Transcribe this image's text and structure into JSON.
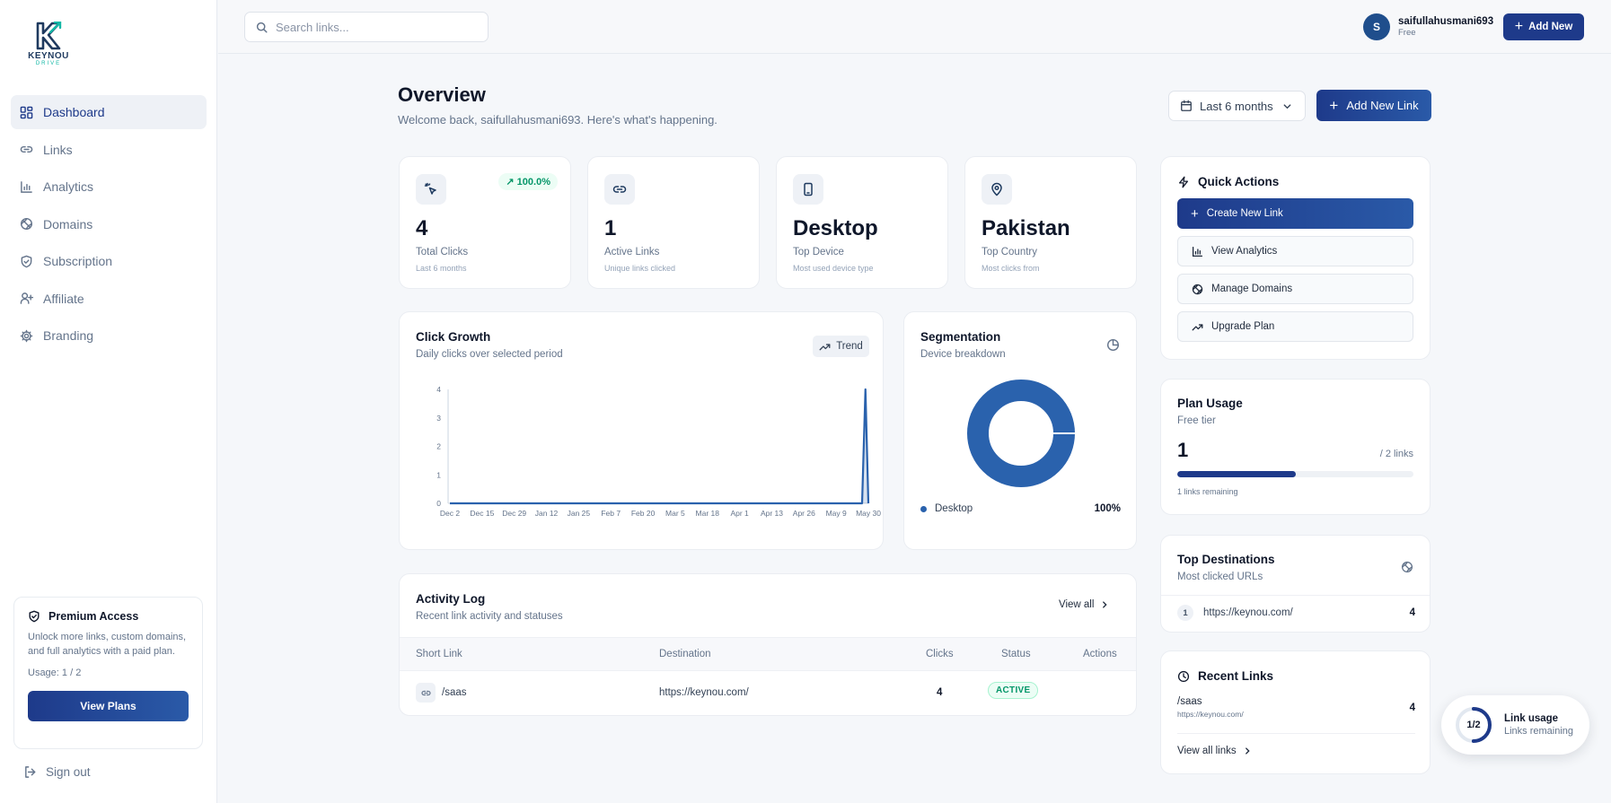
{
  "brand": {
    "name": "KEYNOU",
    "sub": "DRIVE"
  },
  "sidebar": {
    "items": [
      {
        "label": "Dashboard",
        "icon": "grid-icon",
        "active": true
      },
      {
        "label": "Links",
        "icon": "link-icon"
      },
      {
        "label": "Analytics",
        "icon": "bar-chart-icon"
      },
      {
        "label": "Domains",
        "icon": "globe-icon"
      },
      {
        "label": "Subscription",
        "icon": "shield-icon"
      },
      {
        "label": "Affiliate",
        "icon": "user-plus-icon"
      },
      {
        "label": "Branding",
        "icon": "gear-icon"
      }
    ],
    "premium": {
      "title": "Premium Access",
      "description": "Unlock more links, custom domains, and full analytics with a paid plan.",
      "usage": "Usage: 1 / 2",
      "button": "View Plans"
    },
    "signout": "Sign out"
  },
  "topbar": {
    "search_placeholder": "Search links...",
    "user": {
      "initial": "S",
      "name": "saifullahusmani693",
      "plan": "Free"
    },
    "add_new": "Add New"
  },
  "header": {
    "title": "Overview",
    "subtitle": "Welcome back, saifullahusmani693. Here's what's happening.",
    "range": "Last 6 months",
    "add_link": "Add New Link"
  },
  "stats": [
    {
      "icon": "cursor-click-icon",
      "value": "4",
      "label": "Total Clicks",
      "note": "Last 6 months",
      "badge": "↗ 100.0%"
    },
    {
      "icon": "link-icon",
      "value": "1",
      "label": "Active Links",
      "note": "Unique links clicked"
    },
    {
      "icon": "smartphone-icon",
      "value": "Desktop",
      "label": "Top Device",
      "note": "Most used device type"
    },
    {
      "icon": "map-pin-icon",
      "value": "Pakistan",
      "label": "Top Country",
      "note": "Most clicks from"
    }
  ],
  "click_growth": {
    "title": "Click Growth",
    "subtitle": "Daily clicks over selected period",
    "trend_label": "Trend"
  },
  "segmentation": {
    "title": "Segmentation",
    "subtitle": "Device breakdown",
    "legend": [
      {
        "name": "Desktop",
        "percent": "100%"
      }
    ]
  },
  "chart_data": [
    {
      "type": "area",
      "title": "Click Growth",
      "x_ticks": [
        "Dec 2",
        "Dec 15",
        "Dec 29",
        "Jan 12",
        "Jan 25",
        "Feb 7",
        "Feb 20",
        "Mar 5",
        "Mar 18",
        "Apr 1",
        "Apr 13",
        "Apr 26",
        "May 9",
        "May 30"
      ],
      "y_ticks": [
        0,
        1,
        2,
        3,
        4
      ],
      "ylim": [
        0,
        4
      ],
      "series": [
        {
          "values": [
            [
              0,
              0
            ],
            [
              0.985,
              0
            ],
            [
              0.993,
              4
            ],
            [
              1,
              0
            ]
          ]
        }
      ],
      "xlabel": "",
      "ylabel": "",
      "grid": false,
      "color": "#2a62ad"
    },
    {
      "type": "pie",
      "title": "Segmentation",
      "categories": [
        "Desktop"
      ],
      "values": [
        100
      ],
      "color": "#2a62ad"
    }
  ],
  "activity": {
    "title": "Activity Log",
    "subtitle": "Recent link activity and statuses",
    "view_all": "View all",
    "columns": [
      "Short Link",
      "Destination",
      "Clicks",
      "Status",
      "Actions"
    ],
    "rows": [
      {
        "short": "/saas",
        "destination": "https://keynou.com/",
        "clicks": "4",
        "status": "ACTIVE"
      }
    ]
  },
  "quick_actions": {
    "title": "Quick Actions",
    "items": [
      {
        "label": "Create New Link",
        "icon": "plus-icon"
      },
      {
        "label": "View Analytics",
        "icon": "bar-chart-icon"
      },
      {
        "label": "Manage Domains",
        "icon": "globe-icon"
      },
      {
        "label": "Upgrade Plan",
        "icon": "trending-up-icon"
      }
    ]
  },
  "plan_usage": {
    "title": "Plan Usage",
    "tier": "Free tier",
    "used": "1",
    "limit": "/ 2 links",
    "fraction": 0.5,
    "remaining": "1 links remaining"
  },
  "top_destinations": {
    "title": "Top Destinations",
    "subtitle": "Most clicked URLs",
    "items": [
      {
        "rank": "1",
        "url": "https://keynou.com/",
        "clicks": "4"
      }
    ]
  },
  "recent_links": {
    "title": "Recent Links",
    "items": [
      {
        "short": "/saas",
        "url": "https://keynou.com/",
        "clicks": "4"
      }
    ],
    "view_all": "View all links"
  },
  "link_usage": {
    "ratio": "1/2",
    "title": "Link usage",
    "subtitle": "Links remaining",
    "fraction": 0.5
  },
  "colors": {
    "primary": "#1e3a8a",
    "accent": "#2a62ad",
    "success": "#059669"
  }
}
